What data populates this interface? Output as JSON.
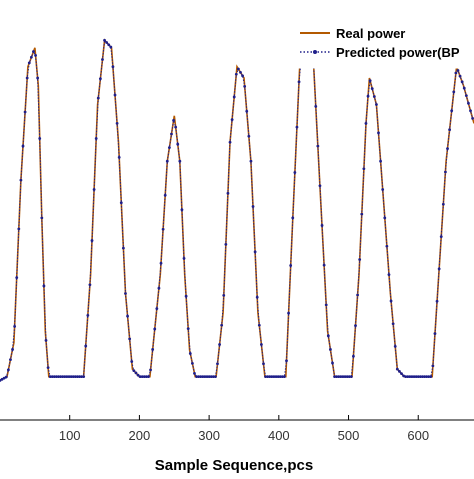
{
  "chart_data": {
    "type": "line",
    "title": "",
    "xlabel": "Sample Sequence,pcs",
    "ylabel": "",
    "xlim": [
      0,
      680
    ],
    "ylim": [
      0,
      1.0
    ],
    "x_ticks": [
      "100",
      "200",
      "300",
      "400",
      "500",
      "600"
    ],
    "x_tick_values": [
      100,
      200,
      300,
      400,
      500,
      600
    ],
    "grid": false,
    "legend_position": "top-right",
    "series": [
      {
        "name": "Real power",
        "color": "#b35900",
        "style": "solid"
      },
      {
        "name": "Predicted power(BP",
        "color": "#1f1f8a",
        "style": "dotted-markers"
      }
    ],
    "real_power_samples": [
      [
        0,
        0.02
      ],
      [
        10,
        0.03
      ],
      [
        20,
        0.12
      ],
      [
        30,
        0.55
      ],
      [
        40,
        0.85
      ],
      [
        50,
        0.9
      ],
      [
        55,
        0.8
      ],
      [
        60,
        0.45
      ],
      [
        65,
        0.15
      ],
      [
        70,
        0.03
      ],
      [
        100,
        0.03
      ],
      [
        120,
        0.03
      ],
      [
        130,
        0.3
      ],
      [
        140,
        0.75
      ],
      [
        150,
        0.92
      ],
      [
        160,
        0.9
      ],
      [
        170,
        0.65
      ],
      [
        180,
        0.25
      ],
      [
        190,
        0.05
      ],
      [
        200,
        0.03
      ],
      [
        215,
        0.03
      ],
      [
        230,
        0.3
      ],
      [
        240,
        0.6
      ],
      [
        250,
        0.72
      ],
      [
        258,
        0.6
      ],
      [
        265,
        0.3
      ],
      [
        272,
        0.1
      ],
      [
        280,
        0.03
      ],
      [
        310,
        0.03
      ],
      [
        320,
        0.2
      ],
      [
        330,
        0.65
      ],
      [
        340,
        0.85
      ],
      [
        350,
        0.82
      ],
      [
        360,
        0.6
      ],
      [
        370,
        0.2
      ],
      [
        380,
        0.03
      ],
      [
        410,
        0.03
      ],
      [
        420,
        0.45
      ],
      [
        430,
        0.85
      ],
      [
        440,
        0.92
      ],
      [
        450,
        0.85
      ],
      [
        460,
        0.5
      ],
      [
        470,
        0.15
      ],
      [
        480,
        0.03
      ],
      [
        505,
        0.03
      ],
      [
        515,
        0.3
      ],
      [
        525,
        0.7
      ],
      [
        530,
        0.82
      ],
      [
        540,
        0.75
      ],
      [
        550,
        0.5
      ],
      [
        560,
        0.25
      ],
      [
        570,
        0.05
      ],
      [
        580,
        0.03
      ],
      [
        620,
        0.03
      ],
      [
        640,
        0.6
      ],
      [
        655,
        0.85
      ],
      [
        665,
        0.8
      ],
      [
        680,
        0.7
      ]
    ]
  }
}
